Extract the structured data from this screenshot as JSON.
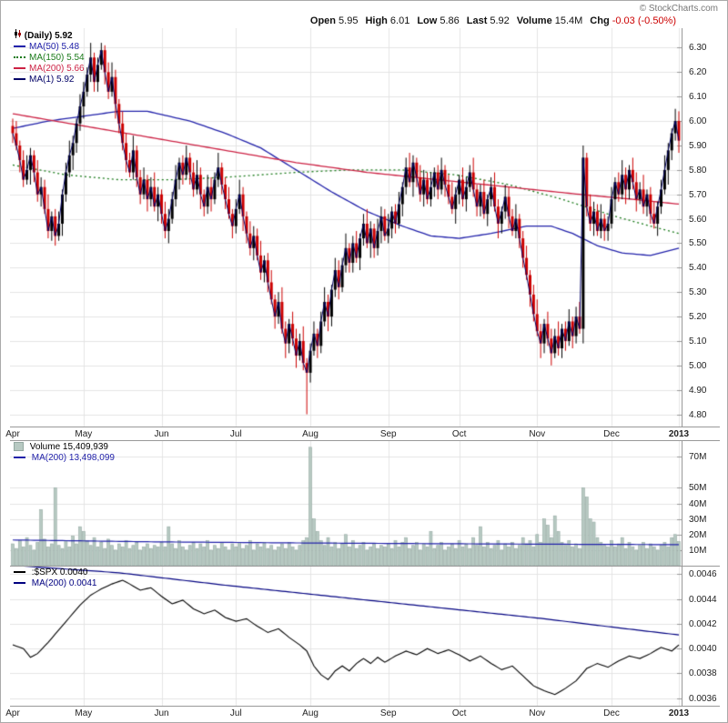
{
  "copyright": "© StockCharts.com",
  "header": {
    "items": [
      {
        "label": "Open",
        "value": "5.95"
      },
      {
        "label": "High",
        "value": "6.01"
      },
      {
        "label": "Low",
        "value": "5.86"
      },
      {
        "label": "Last",
        "value": "5.92"
      },
      {
        "label": "Volume",
        "value": "15.4M"
      },
      {
        "label": "Chg",
        "value": "-0.03 (-0.50%)",
        "color": "#cc0000"
      }
    ]
  },
  "main_legend": {
    "title": "(Daily) 5.92",
    "entries": [
      {
        "label": "MA(50) 5.48",
        "color": "#2222aa",
        "dotted": false
      },
      {
        "label": "MA(150) 5.54",
        "color": "#1a7a1a",
        "dotted": true
      },
      {
        "label": "MA(200) 5.66",
        "color": "#cc2244",
        "dotted": false
      },
      {
        "label": "MA(1) 5.92",
        "color": "#000066",
        "dotted": false
      }
    ]
  },
  "volume_legend": {
    "title": "Volume 15,409,939",
    "ma_label": "MA(200) 13,498,099",
    "ma_color": "#2222aa"
  },
  "ratio_legend": {
    "title": ":$SPX 0.0040",
    "ma_label": "MA(200) 0.0041",
    "ma_color": "#000080"
  },
  "chart_data": [
    {
      "type": "candlestick",
      "name": "(Daily)",
      "last": 5.92,
      "ylim": [
        4.75,
        6.38
      ],
      "yticks": [
        6.3,
        6.2,
        6.1,
        6.0,
        5.9,
        5.8,
        5.7,
        5.6,
        5.5,
        5.4,
        5.3,
        5.2,
        5.1,
        5.0,
        4.9,
        4.8
      ],
      "x_axis": {
        "labels": [
          "Apr",
          "May",
          "Jun",
          "Jul",
          "Aug",
          "Sep",
          "Oct",
          "Nov",
          "Dec",
          "2013"
        ],
        "indices": [
          0,
          20,
          42,
          63,
          84,
          106,
          126,
          148,
          169,
          188
        ]
      },
      "up_color": "#000000",
      "down_color": "#cc0000",
      "close_line_color": "#000066",
      "first_open": 5.98,
      "close": [
        5.95,
        5.9,
        5.84,
        5.76,
        5.8,
        5.86,
        5.79,
        5.7,
        5.73,
        5.64,
        5.55,
        5.61,
        5.53,
        5.58,
        5.7,
        5.79,
        5.86,
        5.91,
        5.99,
        6.06,
        6.12,
        6.19,
        6.26,
        6.16,
        6.23,
        6.29,
        6.2,
        6.12,
        6.18,
        6.07,
        5.99,
        5.91,
        5.84,
        5.79,
        5.88,
        5.77,
        5.7,
        5.76,
        5.68,
        5.73,
        5.65,
        5.7,
        5.62,
        5.55,
        5.6,
        5.68,
        5.76,
        5.83,
        5.78,
        5.85,
        5.79,
        5.72,
        5.78,
        5.7,
        5.65,
        5.73,
        5.68,
        5.76,
        5.81,
        5.74,
        5.68,
        5.62,
        5.57,
        5.64,
        5.7,
        5.61,
        5.54,
        5.48,
        5.53,
        5.45,
        5.38,
        5.43,
        5.34,
        5.27,
        5.2,
        5.26,
        5.15,
        5.09,
        5.17,
        5.11,
        5.04,
        5.1,
        5.01,
        4.97,
        5.06,
        5.13,
        5.08,
        5.18,
        5.26,
        5.2,
        5.31,
        5.39,
        5.32,
        5.41,
        5.48,
        5.42,
        5.5,
        5.44,
        5.52,
        5.58,
        5.5,
        5.56,
        5.48,
        5.55,
        5.61,
        5.53,
        5.56,
        5.63,
        5.58,
        5.66,
        5.73,
        5.81,
        5.75,
        5.83,
        5.77,
        5.7,
        5.76,
        5.68,
        5.73,
        5.79,
        5.72,
        5.8,
        5.74,
        5.69,
        5.64,
        5.7,
        5.76,
        5.68,
        5.73,
        5.79,
        5.72,
        5.65,
        5.71,
        5.62,
        5.68,
        5.73,
        5.65,
        5.58,
        5.63,
        5.69,
        5.61,
        5.55,
        5.6,
        5.52,
        5.44,
        5.37,
        5.29,
        5.21,
        5.14,
        5.09,
        5.17,
        5.11,
        5.05,
        5.12,
        5.07,
        5.15,
        5.1,
        5.18,
        5.12,
        5.2,
        5.15,
        5.85,
        5.65,
        5.58,
        5.63,
        5.55,
        5.6,
        5.55,
        5.58,
        5.68,
        5.75,
        5.7,
        5.78,
        5.72,
        5.8,
        5.75,
        5.68,
        5.72,
        5.65,
        5.7,
        5.62,
        5.58,
        5.65,
        5.72,
        5.8,
        5.88,
        5.95,
        6.0,
        5.92
      ],
      "wick_high_pattern": [
        0.03,
        0.05,
        0.02,
        0.04,
        0.06,
        0.03,
        0.02,
        0.05,
        0.04,
        0.03,
        0.06,
        0.02
      ],
      "wick_low_pattern": [
        0.04,
        0.02,
        0.05,
        0.03,
        0.02,
        0.06,
        0.04,
        0.03,
        0.05,
        0.02,
        0.03,
        0.04
      ],
      "wick_overrides": {
        "25": {
          "high": 6.32
        },
        "83": {
          "low": 4.8
        },
        "161": {
          "high": 5.9
        }
      },
      "ma_lines": [
        {
          "name": "MA(50)",
          "value": 5.48,
          "color": "#2222aa",
          "dotted": false,
          "points": [
            [
              0,
              5.97
            ],
            [
              10,
              6.0
            ],
            [
              20,
              6.02
            ],
            [
              30,
              6.04
            ],
            [
              38,
              6.04
            ],
            [
              50,
              6.0
            ],
            [
              60,
              5.95
            ],
            [
              70,
              5.89
            ],
            [
              80,
              5.8
            ],
            [
              90,
              5.71
            ],
            [
              100,
              5.63
            ],
            [
              110,
              5.57
            ],
            [
              118,
              5.53
            ],
            [
              126,
              5.52
            ],
            [
              135,
              5.54
            ],
            [
              145,
              5.57
            ],
            [
              152,
              5.57
            ],
            [
              158,
              5.54
            ],
            [
              165,
              5.49
            ],
            [
              172,
              5.46
            ],
            [
              180,
              5.45
            ],
            [
              188,
              5.48
            ]
          ]
        },
        {
          "name": "MA(150)",
          "value": 5.54,
          "color": "#1a7a1a",
          "dotted": true,
          "points": [
            [
              0,
              5.82
            ],
            [
              15,
              5.78
            ],
            [
              30,
              5.76
            ],
            [
              45,
              5.76
            ],
            [
              60,
              5.77
            ],
            [
              80,
              5.79
            ],
            [
              95,
              5.8
            ],
            [
              110,
              5.8
            ],
            [
              125,
              5.78
            ],
            [
              140,
              5.74
            ],
            [
              155,
              5.68
            ],
            [
              170,
              5.61
            ],
            [
              180,
              5.57
            ],
            [
              188,
              5.54
            ]
          ]
        },
        {
          "name": "MA(200)",
          "value": 5.66,
          "color": "#cc2244",
          "dotted": false,
          "points": [
            [
              0,
              6.03
            ],
            [
              20,
              5.98
            ],
            [
              40,
              5.93
            ],
            [
              60,
              5.88
            ],
            [
              80,
              5.83
            ],
            [
              100,
              5.79
            ],
            [
              120,
              5.76
            ],
            [
              140,
              5.73
            ],
            [
              160,
              5.7
            ],
            [
              175,
              5.68
            ],
            [
              188,
              5.66
            ]
          ]
        }
      ]
    },
    {
      "type": "bar",
      "name": "Volume",
      "last": "15,409,939",
      "ylim": [
        0,
        80
      ],
      "yticks": [
        {
          "v": 70,
          "label": "70M"
        },
        {
          "v": 50,
          "label": "50M"
        },
        {
          "v": 40,
          "label": "40M"
        },
        {
          "v": 30,
          "label": "30M"
        },
        {
          "v": 20,
          "label": "20M"
        },
        {
          "v": 10,
          "label": "10M"
        }
      ],
      "bar_color": "#b7c9c2",
      "bar_border": "#93a8a1",
      "values_millions": [
        14,
        11,
        16,
        12,
        18,
        13,
        10,
        15,
        36,
        17,
        12,
        14,
        50,
        13,
        11,
        16,
        12,
        19,
        14,
        25,
        22,
        16,
        13,
        18,
        12,
        15,
        11,
        17,
        13,
        10,
        14,
        12,
        16,
        11,
        13,
        15,
        10,
        12,
        14,
        11,
        13,
        12,
        15,
        12,
        25,
        14,
        11,
        16,
        12,
        10,
        13,
        15,
        11,
        14,
        12,
        16,
        10,
        13,
        11,
        15,
        12,
        10,
        14,
        12,
        15,
        11,
        13,
        16,
        10,
        14,
        12,
        15,
        11,
        13,
        10,
        12,
        14,
        11,
        15,
        12,
        10,
        13,
        16,
        18,
        76,
        30,
        22,
        16,
        13,
        18,
        12,
        15,
        11,
        14,
        20,
        12,
        16,
        11,
        13,
        15,
        10,
        12,
        14,
        11,
        13,
        12,
        14,
        11,
        16,
        12,
        15,
        18,
        11,
        13,
        15,
        10,
        14,
        12,
        22,
        11,
        13,
        15,
        10,
        12,
        14,
        11,
        16,
        12,
        14,
        11,
        18,
        13,
        25,
        12,
        15,
        11,
        13,
        16,
        10,
        14,
        12,
        15,
        11,
        13,
        18,
        14,
        16,
        12,
        20,
        15,
        30,
        26,
        18,
        32,
        22,
        15,
        13,
        16,
        12,
        14,
        11,
        50,
        44,
        30,
        28,
        18,
        15,
        13,
        12,
        16,
        12,
        14,
        18,
        11,
        15,
        12,
        10,
        13,
        15,
        11,
        14,
        12,
        10,
        13,
        15,
        12,
        18,
        20,
        15.4
      ],
      "ma200": {
        "value": "13,498,099",
        "color": "#2222aa",
        "points": [
          [
            0,
            16.5
          ],
          [
            40,
            15.3
          ],
          [
            80,
            14.6
          ],
          [
            120,
            14.1
          ],
          [
            160,
            13.7
          ],
          [
            188,
            13.5
          ]
        ]
      }
    },
    {
      "type": "line",
      "name": ":$SPX",
      "last": 0.004,
      "ylim": [
        0.00354,
        0.00466
      ],
      "yticks": [
        0.0046,
        0.0044,
        0.0042,
        0.004,
        0.0038,
        0.0036
      ],
      "color": "#000000",
      "points": [
        [
          0,
          0.00403
        ],
        [
          3,
          0.004
        ],
        [
          5,
          0.00393
        ],
        [
          7,
          0.00396
        ],
        [
          10,
          0.00405
        ],
        [
          13,
          0.00415
        ],
        [
          16,
          0.00425
        ],
        [
          19,
          0.00435
        ],
        [
          22,
          0.00443
        ],
        [
          25,
          0.00448
        ],
        [
          28,
          0.00452
        ],
        [
          31,
          0.00455
        ],
        [
          33,
          0.00452
        ],
        [
          36,
          0.00447
        ],
        [
          39,
          0.00449
        ],
        [
          42,
          0.00442
        ],
        [
          45,
          0.00436
        ],
        [
          48,
          0.00439
        ],
        [
          51,
          0.00432
        ],
        [
          54,
          0.00428
        ],
        [
          57,
          0.00431
        ],
        [
          60,
          0.00425
        ],
        [
          63,
          0.00422
        ],
        [
          66,
          0.00424
        ],
        [
          69,
          0.00418
        ],
        [
          72,
          0.00413
        ],
        [
          75,
          0.00416
        ],
        [
          78,
          0.00409
        ],
        [
          81,
          0.00403
        ],
        [
          83,
          0.00398
        ],
        [
          85,
          0.00386
        ],
        [
          87,
          0.00379
        ],
        [
          89,
          0.00375
        ],
        [
          91,
          0.00382
        ],
        [
          93,
          0.00386
        ],
        [
          95,
          0.00382
        ],
        [
          97,
          0.00388
        ],
        [
          99,
          0.00392
        ],
        [
          101,
          0.00388
        ],
        [
          103,
          0.00393
        ],
        [
          105,
          0.00389
        ],
        [
          108,
          0.00394
        ],
        [
          111,
          0.00398
        ],
        [
          114,
          0.00395
        ],
        [
          117,
          0.004
        ],
        [
          120,
          0.00396
        ],
        [
          123,
          0.00399
        ],
        [
          126,
          0.00395
        ],
        [
          129,
          0.0039
        ],
        [
          132,
          0.00394
        ],
        [
          135,
          0.00388
        ],
        [
          138,
          0.00383
        ],
        [
          141,
          0.00386
        ],
        [
          144,
          0.00378
        ],
        [
          147,
          0.0037
        ],
        [
          150,
          0.00366
        ],
        [
          153,
          0.00363
        ],
        [
          156,
          0.00368
        ],
        [
          159,
          0.00374
        ],
        [
          162,
          0.00384
        ],
        [
          165,
          0.00388
        ],
        [
          168,
          0.00385
        ],
        [
          171,
          0.0039
        ],
        [
          174,
          0.00394
        ],
        [
          177,
          0.00392
        ],
        [
          180,
          0.00396
        ],
        [
          183,
          0.00401
        ],
        [
          186,
          0.00398
        ],
        [
          188,
          0.00403
        ]
      ],
      "ma200": {
        "value": 0.0041,
        "color": "#000080",
        "points": [
          [
            0,
            0.00467
          ],
          [
            30,
            0.00461
          ],
          [
            60,
            0.00451
          ],
          [
            90,
            0.00442
          ],
          [
            120,
            0.00433
          ],
          [
            150,
            0.00424
          ],
          [
            170,
            0.00417
          ],
          [
            188,
            0.00411
          ]
        ]
      }
    }
  ]
}
